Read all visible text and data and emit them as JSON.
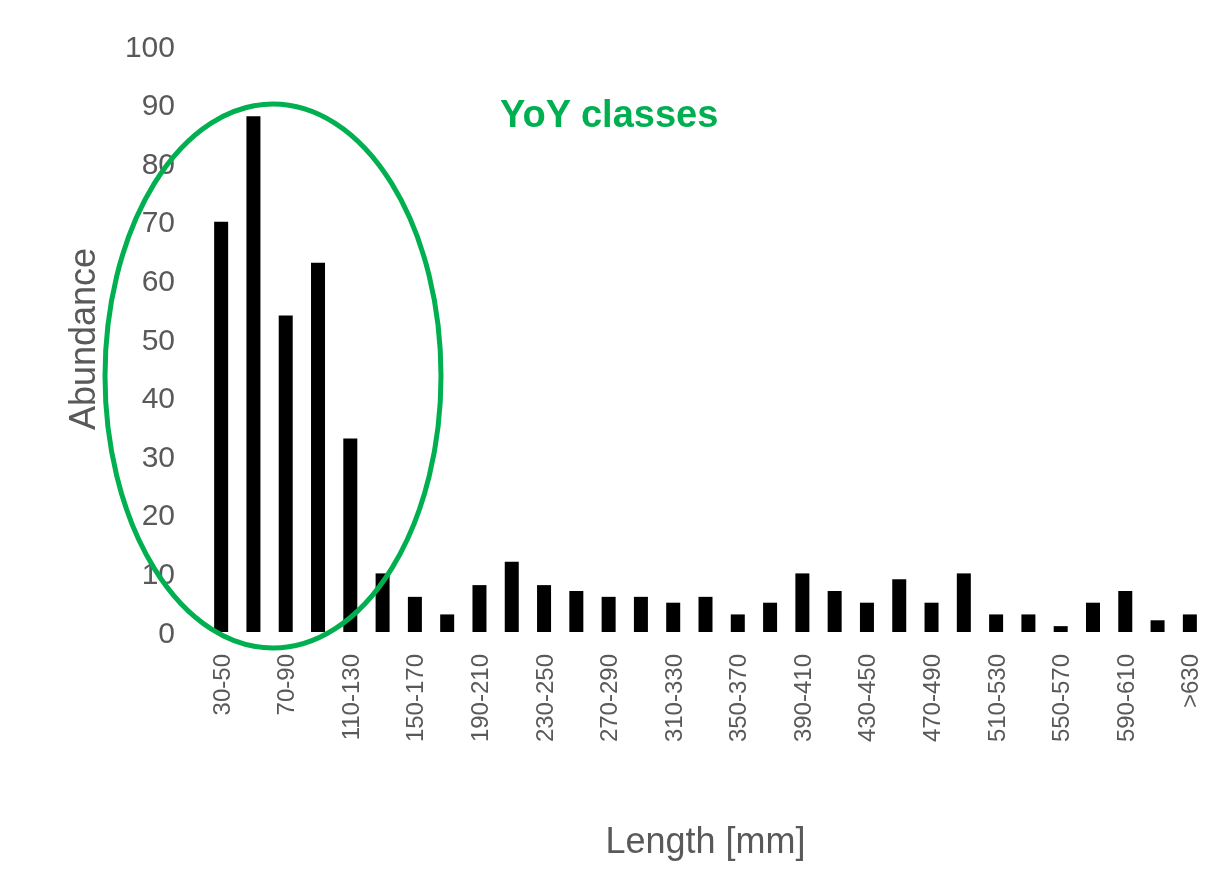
{
  "chart_data": {
    "type": "bar",
    "categories": [
      "30-50",
      null,
      "70-90",
      null,
      "110-130",
      null,
      "150-170",
      null,
      "190-210",
      null,
      "230-250",
      null,
      "270-290",
      null,
      "310-330",
      null,
      "350-370",
      null,
      "390-410",
      null,
      "430-450",
      null,
      "470-490",
      null,
      "510-530",
      null,
      "550-570",
      null,
      "590-610",
      null,
      ">630"
    ],
    "values": [
      70,
      88,
      54,
      63,
      33,
      10,
      6,
      3,
      8,
      12,
      8,
      7,
      6,
      6,
      5,
      6,
      3,
      5,
      10,
      7,
      5,
      9,
      5,
      10,
      3,
      3,
      1,
      5,
      7,
      2,
      3
    ],
    "color": "#000000",
    "xlabel": "Length [mm]",
    "ylabel": "Abundance",
    "ylim": [
      0,
      100
    ],
    "yticks": [
      0,
      10,
      20,
      30,
      40,
      50,
      60,
      70,
      80,
      90,
      100
    ],
    "grid": false,
    "annotations": [
      "YoY classes"
    ]
  }
}
